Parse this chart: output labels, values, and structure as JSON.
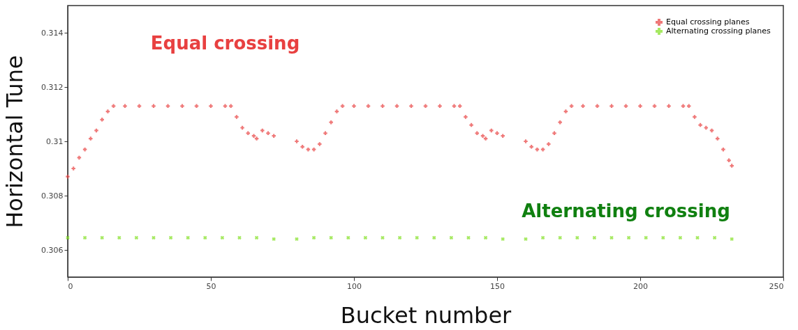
{
  "chart_data": {
    "type": "scatter",
    "xlabel": "Bucket number",
    "ylabel": "Horizontal Tune",
    "xlim": [
      0,
      250
    ],
    "xticks": [
      0,
      50,
      100,
      150,
      200,
      250
    ],
    "ylim": [
      0.305,
      0.315
    ],
    "yticks": [
      0.306,
      0.308,
      {
        "value": 0.31,
        "label": "0.31"
      },
      0.312,
      0.314
    ],
    "grid": false,
    "legend": "top right",
    "series": [
      {
        "name": "Equal crossing planes",
        "color": "#e84040",
        "marker": "cross",
        "x": [
          0,
          2,
          4,
          6,
          8,
          10,
          12,
          14,
          16,
          20,
          25,
          30,
          35,
          40,
          45,
          50,
          55,
          57,
          59,
          61,
          63,
          65,
          66,
          68,
          70,
          72,
          80,
          82,
          84,
          86,
          88,
          90,
          92,
          94,
          96,
          100,
          105,
          110,
          115,
          120,
          125,
          130,
          135,
          137,
          139,
          141,
          143,
          145,
          146,
          148,
          150,
          152,
          160,
          162,
          164,
          166,
          168,
          170,
          172,
          174,
          176,
          180,
          185,
          190,
          195,
          200,
          205,
          210,
          215,
          217,
          219,
          221,
          223,
          225,
          227,
          229,
          231,
          232
        ],
        "values": [
          0.3087,
          0.309,
          0.3094,
          0.3097,
          0.3101,
          0.3104,
          0.3108,
          0.3111,
          0.3113,
          0.3113,
          0.3113,
          0.3113,
          0.3113,
          0.3113,
          0.3113,
          0.3113,
          0.3113,
          0.3113,
          0.3109,
          0.3105,
          0.3103,
          0.3102,
          0.3101,
          0.3104,
          0.3103,
          0.3102,
          0.31,
          0.3098,
          0.3097,
          0.3097,
          0.3099,
          0.3103,
          0.3107,
          0.3111,
          0.3113,
          0.3113,
          0.3113,
          0.3113,
          0.3113,
          0.3113,
          0.3113,
          0.3113,
          0.3113,
          0.3113,
          0.3109,
          0.3106,
          0.3103,
          0.3102,
          0.3101,
          0.3104,
          0.3103,
          0.3102,
          0.31,
          0.3098,
          0.3097,
          0.3097,
          0.3099,
          0.3103,
          0.3107,
          0.3111,
          0.3113,
          0.3113,
          0.3113,
          0.3113,
          0.3113,
          0.3113,
          0.3113,
          0.3113,
          0.3113,
          0.3113,
          0.3109,
          0.3106,
          0.3105,
          0.3104,
          0.3101,
          0.3097,
          0.3093,
          0.3091
        ]
      },
      {
        "name": "Alternating crossing planes",
        "color": "#80e020",
        "marker": "cross",
        "x": [
          0,
          6,
          12,
          18,
          24,
          30,
          36,
          42,
          48,
          54,
          60,
          66,
          72,
          80,
          86,
          92,
          98,
          104,
          110,
          116,
          122,
          128,
          134,
          140,
          146,
          152,
          160,
          166,
          172,
          178,
          184,
          190,
          196,
          202,
          208,
          214,
          220,
          226,
          232
        ],
        "values": [
          0.30645,
          0.30645,
          0.30645,
          0.30645,
          0.30645,
          0.30645,
          0.30645,
          0.30645,
          0.30645,
          0.30645,
          0.30645,
          0.30645,
          0.3064,
          0.3064,
          0.30645,
          0.30645,
          0.30645,
          0.30645,
          0.30645,
          0.30645,
          0.30645,
          0.30645,
          0.30645,
          0.30645,
          0.30645,
          0.3064,
          0.3064,
          0.30645,
          0.30645,
          0.30645,
          0.30645,
          0.30645,
          0.30645,
          0.30645,
          0.30645,
          0.30645,
          0.30645,
          0.30645,
          0.3064
        ]
      }
    ],
    "annotations": [
      "Equal crossing",
      "Alternating crossing"
    ]
  }
}
